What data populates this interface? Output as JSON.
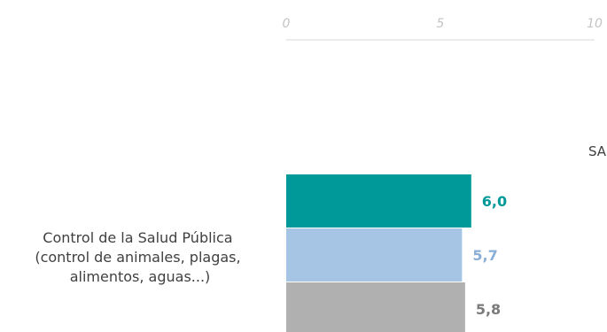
{
  "chart_data": {
    "type": "bar",
    "orientation": "horizontal",
    "title": "",
    "xlabel": "",
    "ylabel": "",
    "xlim": [
      0,
      10
    ],
    "ticks": [
      "0",
      "5",
      "10"
    ],
    "category_label": [
      "Control de la Salud Pública",
      "(control de animales, plagas,",
      "alimentos, aguas...)"
    ],
    "side_text": "SA",
    "series": [
      {
        "value": 6.0,
        "label": "6,0",
        "color": "#009999",
        "label_color": "#009999"
      },
      {
        "value": 5.7,
        "label": "5,7",
        "color": "#a6c4e4",
        "label_color": "#8aaed8"
      },
      {
        "value": 5.8,
        "label": "5,8",
        "color": "#b0b0b0",
        "label_color": "#7a7a7a"
      }
    ],
    "grid": false,
    "axis_color": "#d9d9d9"
  }
}
